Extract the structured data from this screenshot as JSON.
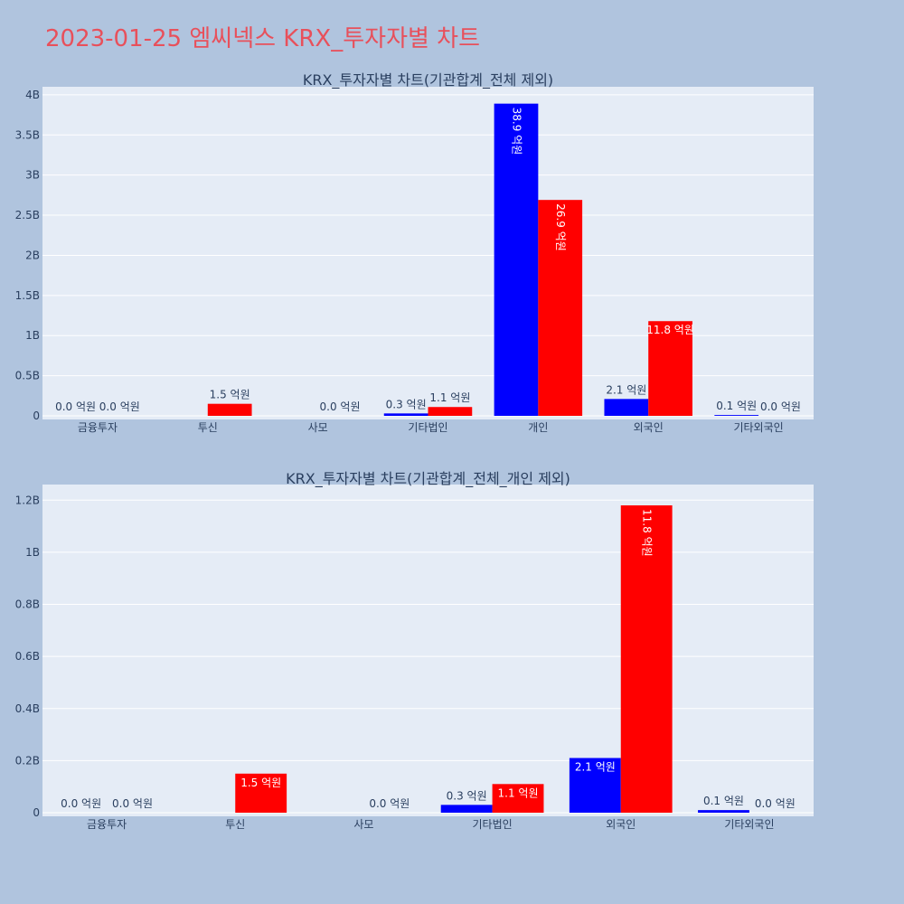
{
  "title": "2023-01-25 엠씨넥스 KRX_투자자별 차트",
  "colors": {
    "buy": "#0000ff",
    "sell": "#ff0000"
  },
  "chart_data": [
    {
      "type": "bar",
      "title": "KRX_투자자별 차트(기관합계_전체 제외)",
      "categories": [
        "금융투자",
        "투신",
        "사모",
        "기타법인",
        "개인",
        "외국인",
        "기타외국인"
      ],
      "series": [
        {
          "color": "#0000ff",
          "values": [
            0,
            0,
            0,
            30000000,
            3890000000,
            210000000,
            10000000
          ],
          "labels": [
            "0.0 억원",
            "",
            "",
            "0.3 억원",
            "38.9 억원",
            "2.1 억원",
            "0.1 억원"
          ]
        },
        {
          "color": "#ff0000",
          "values": [
            0,
            150000000,
            0,
            110000000,
            2690000000,
            1180000000,
            0
          ],
          "labels": [
            "0.0 억원",
            "1.5 억원",
            "0.0 억원",
            "1.1 억원",
            "26.9 억원",
            "11.8 억원",
            "0.0 억원"
          ]
        }
      ],
      "yticks": [
        "0",
        "0.5B",
        "1B",
        "1.5B",
        "2B",
        "2.5B",
        "3B",
        "3.5B",
        "4B"
      ],
      "ylim": [
        0,
        4100000000
      ],
      "grid": true
    },
    {
      "type": "bar",
      "title": "KRX_투자자별 차트(기관합계_전체_개인 제외)",
      "categories": [
        "금융투자",
        "투신",
        "사모",
        "기타법인",
        "외국인",
        "기타외국인"
      ],
      "series": [
        {
          "color": "#0000ff",
          "values": [
            0,
            0,
            0,
            30000000,
            210000000,
            10000000
          ],
          "labels": [
            "0.0 억원",
            "",
            "",
            "0.3 억원",
            "2.1 억원",
            "0.1 억원"
          ]
        },
        {
          "color": "#ff0000",
          "values": [
            0,
            150000000,
            0,
            110000000,
            1180000000,
            0
          ],
          "labels": [
            "0.0 억원",
            "1.5 억원",
            "0.0 억원",
            "1.1 억원",
            "11.8 억원",
            "0.0 억원"
          ]
        }
      ],
      "yticks": [
        "0",
        "0.2B",
        "0.4B",
        "0.6B",
        "0.8B",
        "1B",
        "1.2B"
      ],
      "ylim": [
        0,
        1260000000
      ],
      "grid": true
    }
  ]
}
